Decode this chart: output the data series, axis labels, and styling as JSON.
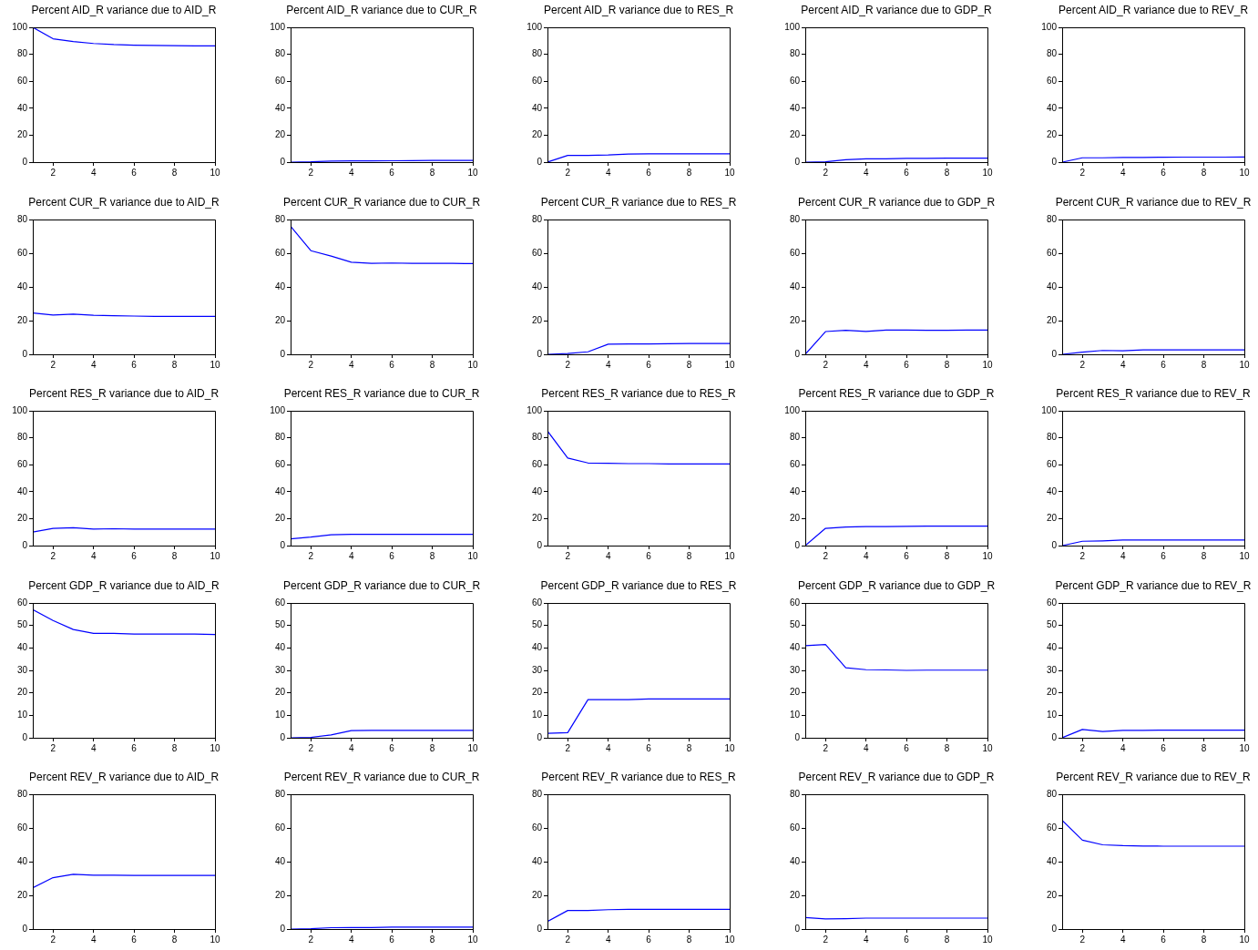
{
  "chart_data": [
    {
      "type": "line",
      "title": "Percent AID_R variance due to AID_R",
      "x": [
        1,
        2,
        3,
        4,
        5,
        6,
        7,
        8,
        9,
        10
      ],
      "xlim": [
        1,
        10
      ],
      "xticks": [
        2,
        4,
        6,
        8,
        10
      ],
      "ylim": [
        0,
        100
      ],
      "yticks": [
        0,
        20,
        40,
        60,
        80,
        100
      ],
      "series": [
        {
          "color": "#0000ff",
          "values": [
            100,
            91.5,
            89.5,
            88,
            87.2,
            86.8,
            86.6,
            86.4,
            86.3,
            86.2
          ]
        }
      ]
    },
    {
      "type": "line",
      "title": "Percent AID_R variance due to CUR_R",
      "x": [
        1,
        2,
        3,
        4,
        5,
        6,
        7,
        8,
        9,
        10
      ],
      "xlim": [
        1,
        10
      ],
      "xticks": [
        2,
        4,
        6,
        8,
        10
      ],
      "ylim": [
        0,
        100
      ],
      "yticks": [
        0,
        20,
        40,
        60,
        80,
        100
      ],
      "series": [
        {
          "color": "#0000ff",
          "values": [
            0,
            0.2,
            0.8,
            0.9,
            0.9,
            1.0,
            1.1,
            1.2,
            1.2,
            1.2
          ]
        }
      ]
    },
    {
      "type": "line",
      "title": "Percent AID_R variance due to RES_R",
      "x": [
        1,
        2,
        3,
        4,
        5,
        6,
        7,
        8,
        9,
        10
      ],
      "xlim": [
        1,
        10
      ],
      "xticks": [
        2,
        4,
        6,
        8,
        10
      ],
      "ylim": [
        0,
        100
      ],
      "yticks": [
        0,
        20,
        40,
        60,
        80,
        100
      ],
      "series": [
        {
          "color": "#0000ff",
          "values": [
            0,
            5,
            5,
            5.3,
            6,
            6.1,
            6.1,
            6.1,
            6.1,
            6.2
          ]
        }
      ]
    },
    {
      "type": "line",
      "title": "Percent AID_R variance due to GDP_R",
      "x": [
        1,
        2,
        3,
        4,
        5,
        6,
        7,
        8,
        9,
        10
      ],
      "xlim": [
        1,
        10
      ],
      "xticks": [
        2,
        4,
        6,
        8,
        10
      ],
      "ylim": [
        0,
        100
      ],
      "yticks": [
        0,
        20,
        40,
        60,
        80,
        100
      ],
      "series": [
        {
          "color": "#0000ff",
          "values": [
            0,
            0.2,
            1.8,
            2.4,
            2.5,
            2.8,
            2.8,
            2.9,
            2.9,
            2.9
          ]
        }
      ]
    },
    {
      "type": "line",
      "title": "Percent AID_R variance due to REV_R",
      "x": [
        1,
        2,
        3,
        4,
        5,
        6,
        7,
        8,
        9,
        10
      ],
      "xlim": [
        1,
        10
      ],
      "xticks": [
        2,
        4,
        6,
        8,
        10
      ],
      "ylim": [
        0,
        100
      ],
      "yticks": [
        0,
        20,
        40,
        60,
        80,
        100
      ],
      "series": [
        {
          "color": "#0000ff",
          "values": [
            0,
            3.2,
            3.2,
            3.5,
            3.5,
            3.6,
            3.7,
            3.7,
            3.7,
            3.8
          ]
        }
      ]
    },
    {
      "type": "line",
      "title": "Percent CUR_R variance due to AID_R",
      "x": [
        1,
        2,
        3,
        4,
        5,
        6,
        7,
        8,
        9,
        10
      ],
      "xlim": [
        1,
        10
      ],
      "xticks": [
        2,
        4,
        6,
        8,
        10
      ],
      "ylim": [
        0,
        80
      ],
      "yticks": [
        0,
        20,
        40,
        60,
        80
      ],
      "series": [
        {
          "color": "#0000ff",
          "values": [
            24.5,
            23.3,
            23.9,
            23.2,
            22.9,
            22.7,
            22.5,
            22.5,
            22.5,
            22.5
          ]
        }
      ]
    },
    {
      "type": "line",
      "title": "Percent CUR_R variance due to CUR_R",
      "x": [
        1,
        2,
        3,
        4,
        5,
        6,
        7,
        8,
        9,
        10
      ],
      "xlim": [
        1,
        10
      ],
      "xticks": [
        2,
        4,
        6,
        8,
        10
      ],
      "ylim": [
        0,
        80
      ],
      "yticks": [
        0,
        20,
        40,
        60,
        80
      ],
      "series": [
        {
          "color": "#0000ff",
          "values": [
            76,
            61.5,
            58.3,
            54.7,
            54.0,
            54.2,
            54.0,
            54.0,
            54.0,
            53.8
          ]
        }
      ]
    },
    {
      "type": "line",
      "title": "Percent CUR_R variance due to RES_R",
      "x": [
        1,
        2,
        3,
        4,
        5,
        6,
        7,
        8,
        9,
        10
      ],
      "xlim": [
        1,
        10
      ],
      "xticks": [
        2,
        4,
        6,
        8,
        10
      ],
      "ylim": [
        0,
        80
      ],
      "yticks": [
        0,
        20,
        40,
        60,
        80
      ],
      "series": [
        {
          "color": "#0000ff",
          "values": [
            0,
            0.5,
            1.5,
            6.0,
            6.1,
            6.1,
            6.3,
            6.4,
            6.4,
            6.4
          ]
        }
      ]
    },
    {
      "type": "line",
      "title": "Percent CUR_R variance due to GDP_R",
      "x": [
        1,
        2,
        3,
        4,
        5,
        6,
        7,
        8,
        9,
        10
      ],
      "xlim": [
        1,
        10
      ],
      "xticks": [
        2,
        4,
        6,
        8,
        10
      ],
      "ylim": [
        0,
        80
      ],
      "yticks": [
        0,
        20,
        40,
        60,
        80
      ],
      "series": [
        {
          "color": "#0000ff",
          "values": [
            0,
            13.5,
            14.3,
            13.6,
            14.4,
            14.4,
            14.3,
            14.3,
            14.4,
            14.4
          ]
        }
      ]
    },
    {
      "type": "line",
      "title": "Percent CUR_R variance due to REV_R",
      "x": [
        1,
        2,
        3,
        4,
        5,
        6,
        7,
        8,
        9,
        10
      ],
      "xlim": [
        1,
        10
      ],
      "xticks": [
        2,
        4,
        6,
        8,
        10
      ],
      "ylim": [
        0,
        80
      ],
      "yticks": [
        0,
        20,
        40,
        60,
        80
      ],
      "series": [
        {
          "color": "#0000ff",
          "values": [
            0,
            1.3,
            2.3,
            2.1,
            2.6,
            2.6,
            2.6,
            2.6,
            2.6,
            2.6
          ]
        }
      ]
    },
    {
      "type": "line",
      "title": "Percent RES_R variance due to AID_R",
      "x": [
        1,
        2,
        3,
        4,
        5,
        6,
        7,
        8,
        9,
        10
      ],
      "xlim": [
        1,
        10
      ],
      "xticks": [
        2,
        4,
        6,
        8,
        10
      ],
      "ylim": [
        0,
        100
      ],
      "yticks": [
        0,
        20,
        40,
        60,
        80,
        100
      ],
      "series": [
        {
          "color": "#0000ff",
          "values": [
            10,
            12.7,
            13.3,
            12.3,
            12.5,
            12.3,
            12.3,
            12.3,
            12.3,
            12.3
          ]
        }
      ]
    },
    {
      "type": "line",
      "title": "Percent RES_R variance due to CUR_R",
      "x": [
        1,
        2,
        3,
        4,
        5,
        6,
        7,
        8,
        9,
        10
      ],
      "xlim": [
        1,
        10
      ],
      "xticks": [
        2,
        4,
        6,
        8,
        10
      ],
      "ylim": [
        0,
        100
      ],
      "yticks": [
        0,
        20,
        40,
        60,
        80,
        100
      ],
      "series": [
        {
          "color": "#0000ff",
          "values": [
            5,
            6.3,
            8,
            8.3,
            8.3,
            8.3,
            8.3,
            8.3,
            8.3,
            8.3
          ]
        }
      ]
    },
    {
      "type": "line",
      "title": "Percent RES_R variance due to RES_R",
      "x": [
        1,
        2,
        3,
        4,
        5,
        6,
        7,
        8,
        9,
        10
      ],
      "xlim": [
        1,
        10
      ],
      "xticks": [
        2,
        4,
        6,
        8,
        10
      ],
      "ylim": [
        0,
        100
      ],
      "yticks": [
        0,
        20,
        40,
        60,
        80,
        100
      ],
      "series": [
        {
          "color": "#0000ff",
          "values": [
            85,
            65,
            61.3,
            61,
            60.8,
            60.8,
            60.5,
            60.5,
            60.5,
            60.5
          ]
        }
      ]
    },
    {
      "type": "line",
      "title": "Percent RES_R variance due to GDP_R",
      "x": [
        1,
        2,
        3,
        4,
        5,
        6,
        7,
        8,
        9,
        10
      ],
      "xlim": [
        1,
        10
      ],
      "xticks": [
        2,
        4,
        6,
        8,
        10
      ],
      "ylim": [
        0,
        100
      ],
      "yticks": [
        0,
        20,
        40,
        60,
        80,
        100
      ],
      "series": [
        {
          "color": "#0000ff",
          "values": [
            0,
            12.8,
            13.8,
            14.1,
            14.1,
            14.3,
            14.5,
            14.5,
            14.5,
            14.5
          ]
        }
      ]
    },
    {
      "type": "line",
      "title": "Percent RES_R variance due to REV_R",
      "x": [
        1,
        2,
        3,
        4,
        5,
        6,
        7,
        8,
        9,
        10
      ],
      "xlim": [
        1,
        10
      ],
      "xticks": [
        2,
        4,
        6,
        8,
        10
      ],
      "ylim": [
        0,
        100
      ],
      "yticks": [
        0,
        20,
        40,
        60,
        80,
        100
      ],
      "series": [
        {
          "color": "#0000ff",
          "values": [
            0,
            3.2,
            3.5,
            4.1,
            4.1,
            4.1,
            4.1,
            4.1,
            4.1,
            4.1
          ]
        }
      ]
    },
    {
      "type": "line",
      "title": "Percent GDP_R variance due to AID_R",
      "x": [
        1,
        2,
        3,
        4,
        5,
        6,
        7,
        8,
        9,
        10
      ],
      "xlim": [
        1,
        10
      ],
      "xticks": [
        2,
        4,
        6,
        8,
        10
      ],
      "ylim": [
        0,
        60
      ],
      "yticks": [
        0,
        10,
        20,
        30,
        40,
        50,
        60
      ],
      "series": [
        {
          "color": "#0000ff",
          "values": [
            57,
            52.2,
            48.2,
            46.5,
            46.5,
            46.2,
            46.2,
            46.2,
            46.2,
            46.0
          ]
        }
      ]
    },
    {
      "type": "line",
      "title": "Percent GDP_R variance due to CUR_R",
      "x": [
        1,
        2,
        3,
        4,
        5,
        6,
        7,
        8,
        9,
        10
      ],
      "xlim": [
        1,
        10
      ],
      "xticks": [
        2,
        4,
        6,
        8,
        10
      ],
      "ylim": [
        0,
        60
      ],
      "yticks": [
        0,
        10,
        20,
        30,
        40,
        50,
        60
      ],
      "series": [
        {
          "color": "#0000ff",
          "values": [
            0,
            0.2,
            1.3,
            3.2,
            3.3,
            3.3,
            3.3,
            3.3,
            3.3,
            3.3
          ]
        }
      ]
    },
    {
      "type": "line",
      "title": "Percent GDP_R variance due to RES_R",
      "x": [
        1,
        2,
        3,
        4,
        5,
        6,
        7,
        8,
        9,
        10
      ],
      "xlim": [
        1,
        10
      ],
      "xticks": [
        2,
        4,
        6,
        8,
        10
      ],
      "ylim": [
        0,
        60
      ],
      "yticks": [
        0,
        10,
        20,
        30,
        40,
        50,
        60
      ],
      "series": [
        {
          "color": "#0000ff",
          "values": [
            2,
            2.3,
            17,
            17,
            17,
            17.3,
            17.3,
            17.3,
            17.3,
            17.3
          ]
        }
      ]
    },
    {
      "type": "line",
      "title": "Percent GDP_R variance due to GDP_R",
      "x": [
        1,
        2,
        3,
        4,
        5,
        6,
        7,
        8,
        9,
        10
      ],
      "xlim": [
        1,
        10
      ],
      "xticks": [
        2,
        4,
        6,
        8,
        10
      ],
      "ylim": [
        0,
        60
      ],
      "yticks": [
        0,
        10,
        20,
        30,
        40,
        50,
        60
      ],
      "series": [
        {
          "color": "#0000ff",
          "values": [
            41,
            41.5,
            31.2,
            30.3,
            30.2,
            30.0,
            30.1,
            30.1,
            30.1,
            30.1
          ]
        }
      ]
    },
    {
      "type": "line",
      "title": "Percent GDP_R variance due to REV_R",
      "x": [
        1,
        2,
        3,
        4,
        5,
        6,
        7,
        8,
        9,
        10
      ],
      "xlim": [
        1,
        10
      ],
      "xticks": [
        2,
        4,
        6,
        8,
        10
      ],
      "ylim": [
        0,
        60
      ],
      "yticks": [
        0,
        10,
        20,
        30,
        40,
        50,
        60
      ],
      "series": [
        {
          "color": "#0000ff",
          "values": [
            0,
            3.7,
            2.8,
            3.3,
            3.3,
            3.4,
            3.4,
            3.4,
            3.4,
            3.4
          ]
        }
      ]
    },
    {
      "type": "line",
      "title": "Percent REV_R variance due to AID_R",
      "x": [
        1,
        2,
        3,
        4,
        5,
        6,
        7,
        8,
        9,
        10
      ],
      "xlim": [
        1,
        10
      ],
      "xticks": [
        2,
        4,
        6,
        8,
        10
      ],
      "ylim": [
        0,
        80
      ],
      "yticks": [
        0,
        20,
        40,
        60,
        80
      ],
      "series": [
        {
          "color": "#0000ff",
          "values": [
            24.5,
            30.5,
            32.5,
            32,
            32,
            31.8,
            31.8,
            31.8,
            31.8,
            31.8
          ]
        }
      ]
    },
    {
      "type": "line",
      "title": "Percent REV_R variance due to CUR_R",
      "x": [
        1,
        2,
        3,
        4,
        5,
        6,
        7,
        8,
        9,
        10
      ],
      "xlim": [
        1,
        10
      ],
      "xticks": [
        2,
        4,
        6,
        8,
        10
      ],
      "ylim": [
        0,
        80
      ],
      "yticks": [
        0,
        20,
        40,
        60,
        80
      ],
      "series": [
        {
          "color": "#0000ff",
          "values": [
            0,
            0.2,
            0.8,
            0.9,
            0.9,
            1.1,
            1.1,
            1.1,
            1.1,
            1.1
          ]
        }
      ]
    },
    {
      "type": "line",
      "title": "Percent REV_R variance due to RES_R",
      "x": [
        1,
        2,
        3,
        4,
        5,
        6,
        7,
        8,
        9,
        10
      ],
      "xlim": [
        1,
        10
      ],
      "xticks": [
        2,
        4,
        6,
        8,
        10
      ],
      "ylim": [
        0,
        80
      ],
      "yticks": [
        0,
        20,
        40,
        60,
        80
      ],
      "series": [
        {
          "color": "#0000ff",
          "values": [
            4.5,
            11,
            11,
            11.5,
            11.7,
            11.7,
            11.7,
            11.7,
            11.7,
            11.7
          ]
        }
      ]
    },
    {
      "type": "line",
      "title": "Percent REV_R variance due to GDP_R",
      "x": [
        1,
        2,
        3,
        4,
        5,
        6,
        7,
        8,
        9,
        10
      ],
      "xlim": [
        1,
        10
      ],
      "xticks": [
        2,
        4,
        6,
        8,
        10
      ],
      "ylim": [
        0,
        80
      ],
      "yticks": [
        0,
        20,
        40,
        60,
        80
      ],
      "series": [
        {
          "color": "#0000ff",
          "values": [
            6.8,
            6,
            6.2,
            6.5,
            6.5,
            6.5,
            6.5,
            6.5,
            6.5,
            6.5
          ]
        }
      ]
    },
    {
      "type": "line",
      "title": "Percent REV_R variance due to REV_R",
      "x": [
        1,
        2,
        3,
        4,
        5,
        6,
        7,
        8,
        9,
        10
      ],
      "xlim": [
        1,
        10
      ],
      "xticks": [
        2,
        4,
        6,
        8,
        10
      ],
      "ylim": [
        0,
        80
      ],
      "yticks": [
        0,
        20,
        40,
        60,
        80
      ],
      "series": [
        {
          "color": "#0000ff",
          "values": [
            64.5,
            52.8,
            50,
            49.5,
            49.3,
            49.2,
            49.2,
            49.2,
            49.2,
            49.2
          ]
        }
      ]
    }
  ]
}
